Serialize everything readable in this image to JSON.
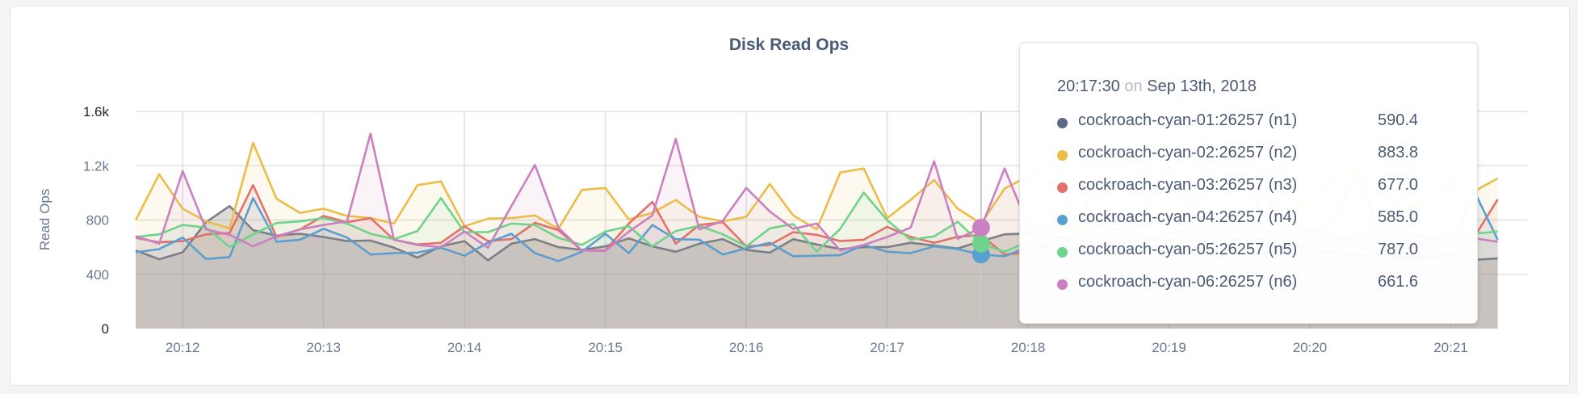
{
  "chart_data": {
    "type": "line",
    "title": "Disk Read Ops",
    "ylabel": "Read Ops",
    "xlabel": "",
    "ylim": [
      0,
      1600
    ],
    "yticks": [
      "0",
      "400",
      "800",
      "1.2k",
      "1.6k"
    ],
    "ytick_values": [
      0,
      400,
      800,
      1200,
      1600
    ],
    "xticks": [
      "20:12",
      "20:13",
      "20:14",
      "20:15",
      "20:16",
      "20:17",
      "20:18",
      "20:19",
      "20:20",
      "20:21"
    ],
    "x_start": "20:11:40",
    "x_interval_seconds": 10,
    "grid": true,
    "area_fill": true,
    "series": [
      {
        "name": "cockroach-cyan-01:26257 (n1)",
        "color": "#5a6985",
        "values": [
          576,
          511,
          562,
          784,
          903,
          725,
          685,
          699,
          675,
          645,
          649,
          596,
          523,
          606,
          645,
          503,
          626,
          659,
          600,
          580,
          606,
          665,
          606,
          566,
          626,
          659,
          580,
          560,
          659,
          620,
          586,
          600,
          600,
          632,
          612,
          590.4,
          645,
          695,
          700,
          680,
          660,
          620,
          640,
          600,
          610,
          650,
          630,
          590,
          600,
          620,
          580,
          560,
          540,
          560,
          520,
          530,
          540,
          507,
          517
        ]
      },
      {
        "name": "cockroach-cyan-02:26257 (n2)",
        "color": "#ecbc49",
        "values": [
          798,
          1137,
          883,
          790,
          739,
          1368,
          956,
          853,
          883,
          830,
          814,
          774,
          1057,
          1085,
          754,
          810,
          814,
          834,
          735,
          1022,
          1036,
          804,
          853,
          948,
          824,
          790,
          824,
          1065,
          834,
          731,
          1150,
          1180,
          814,
          948,
          1095,
          883.8,
          774,
          1032,
          1120,
          1200,
          1050,
          950,
          1100,
          1180,
          1000,
          900,
          1050,
          1150,
          980,
          870,
          950,
          1100,
          1180,
          1000,
          880,
          950,
          1080,
          1012,
          1107
        ]
      },
      {
        "name": "cockroach-cyan-03:26257 (n3)",
        "color": "#e2706b",
        "values": [
          669,
          636,
          645,
          695,
          705,
          1057,
          675,
          731,
          830,
          784,
          814,
          655,
          620,
          632,
          754,
          645,
          659,
          780,
          725,
          576,
          576,
          774,
          933,
          626,
          764,
          784,
          606,
          616,
          711,
          691,
          645,
          655,
          750,
          675,
          632,
          677.0,
          690,
          546,
          560,
          620,
          700,
          760,
          720,
          680,
          650,
          700,
          740,
          690,
          660,
          700,
          720,
          680,
          650,
          690,
          710,
          670,
          640,
          675,
          952
        ]
      },
      {
        "name": "cockroach-cyan-04:26257 (n4)",
        "color": "#5b9fd0",
        "values": [
          562,
          586,
          671,
          513,
          527,
          962,
          640,
          655,
          735,
          671,
          546,
          556,
          560,
          596,
          537,
          632,
          699,
          556,
          497,
          566,
          699,
          556,
          764,
          659,
          655,
          546,
          592,
          632,
          533,
          537,
          541,
          616,
          566,
          556,
          606,
          585.0,
          546,
          533,
          600,
          640,
          580,
          560,
          620,
          600,
          570,
          590,
          630,
          600,
          560,
          580,
          620,
          640,
          600,
          570,
          590,
          620,
          600,
          1012,
          655
        ]
      },
      {
        "name": "cockroach-cyan-05:26257 (n5)",
        "color": "#6fd38c",
        "values": [
          675,
          695,
          764,
          744,
          602,
          695,
          778,
          790,
          814,
          774,
          699,
          659,
          719,
          962,
          711,
          711,
          774,
          764,
          669,
          616,
          715,
          754,
          606,
          719,
          758,
          695,
          606,
          739,
          770,
          566,
          735,
          1002,
          798,
          655,
          679,
          787.0,
          626,
          566,
          640,
          700,
          760,
          720,
          680,
          650,
          700,
          740,
          690,
          660,
          720,
          700,
          680,
          650,
          700,
          730,
          690,
          660,
          700,
          699,
          715
        ]
      },
      {
        "name": "cockroach-cyan-06:26257 (n6)",
        "color": "#cb80c1",
        "values": [
          681,
          626,
          1160,
          731,
          691,
          606,
          681,
          731,
          764,
          790,
          1437,
          655,
          616,
          600,
          715,
          596,
          903,
          1206,
          744,
          576,
          572,
          715,
          834,
          1398,
          731,
          794,
          1036,
          863,
          735,
          774,
          576,
          616,
          675,
          744,
          1233,
          661.6,
          744,
          1180,
          760,
          700,
          1100,
          720,
          650,
          900,
          1200,
          780,
          700,
          650,
          1000,
          720,
          680,
          800,
          1150,
          700,
          660,
          620,
          650,
          665,
          640
        ]
      }
    ]
  },
  "tooltip": {
    "time": "20:17:30",
    "on": "on",
    "date": "Sep 13th, 2018",
    "rows": [
      {
        "name": "cockroach-cyan-01:26257 (n1)",
        "value": "590.4",
        "color": "#5a6985"
      },
      {
        "name": "cockroach-cyan-02:26257 (n2)",
        "value": "883.8",
        "color": "#ecbc49"
      },
      {
        "name": "cockroach-cyan-03:26257 (n3)",
        "value": "677.0",
        "color": "#e2706b"
      },
      {
        "name": "cockroach-cyan-04:26257 (n4)",
        "value": "585.0",
        "color": "#5b9fd0"
      },
      {
        "name": "cockroach-cyan-05:26257 (n5)",
        "value": "787.0",
        "color": "#6fd38c"
      },
      {
        "name": "cockroach-cyan-06:26257 (n6)",
        "value": "661.6",
        "color": "#cb80c1"
      }
    ]
  }
}
